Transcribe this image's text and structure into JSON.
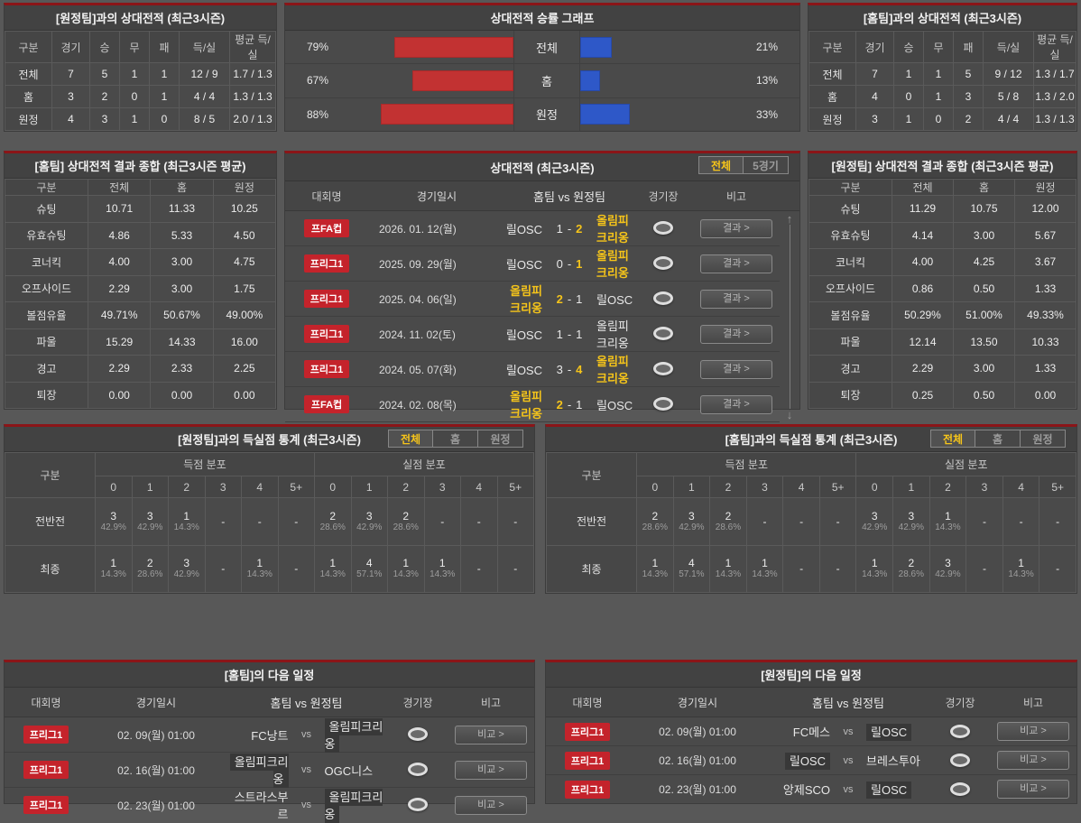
{
  "labels": {
    "vs": "vs",
    "dash": "-"
  },
  "colors": {
    "panel_top_border": "#8b1518",
    "badge_red": "#c4232b",
    "bar_red": "#c23232",
    "bar_blue": "#2e58c8",
    "highlight_yellow": "#f5c41a",
    "panel_bg": "#4a4a4a",
    "page_bg": "#585858"
  },
  "chart_data": {
    "type": "bar",
    "title": "상대전적 승률 그래프",
    "categories": [
      "전체",
      "홈",
      "원정"
    ],
    "series": [
      {
        "name": "left-red",
        "color": "#c23232",
        "values": [
          79,
          67,
          88
        ]
      },
      {
        "name": "right-blue",
        "color": "#2e58c8",
        "values": [
          21,
          13,
          33
        ]
      }
    ],
    "unit": "%",
    "xlim": [
      0,
      100
    ],
    "legend": "none"
  },
  "chart": {
    "title": "상대전적 승률 그래프",
    "rows": [
      {
        "label": "전체",
        "left_label": "79%",
        "right_label": "21%"
      },
      {
        "label": "홈",
        "left_label": "67%",
        "right_label": "13%"
      },
      {
        "label": "원정",
        "left_label": "88%",
        "right_label": "33%"
      }
    ]
  },
  "a1": {
    "title": "[원정팀]과의 상대전적 (최근3시즌)",
    "headers": [
      "구분",
      "경기",
      "승",
      "무",
      "패",
      "득/실",
      "평균 득/실"
    ],
    "rows": [
      {
        "label": "전체",
        "cells": [
          "7",
          "5",
          "1",
          "1",
          "12 / 9",
          "1.7 / 1.3"
        ]
      },
      {
        "label": "홈",
        "cells": [
          "3",
          "2",
          "0",
          "1",
          "4 / 4",
          "1.3 / 1.3"
        ]
      },
      {
        "label": "원정",
        "cells": [
          "4",
          "3",
          "1",
          "0",
          "8 / 5",
          "2.0 / 1.3"
        ]
      }
    ]
  },
  "a2": {
    "title": "[홈팀]과의 상대전적 (최근3시즌)",
    "headers": [
      "구분",
      "경기",
      "승",
      "무",
      "패",
      "득/실",
      "평균 득/실"
    ],
    "rows": [
      {
        "label": "전체",
        "cells": [
          "7",
          "1",
          "1",
          "5",
          "9 / 12",
          "1.3 / 1.7"
        ]
      },
      {
        "label": "홈",
        "cells": [
          "4",
          "0",
          "1",
          "3",
          "5 / 8",
          "1.3 / 2.0"
        ]
      },
      {
        "label": "원정",
        "cells": [
          "3",
          "1",
          "0",
          "2",
          "4 / 4",
          "1.3 / 1.3"
        ]
      }
    ]
  },
  "s1": {
    "title": "[홈팀] 상대전적 결과 종합 (최근3시즌 평균)",
    "headers": [
      "구분",
      "전체",
      "홈",
      "원정"
    ],
    "rows": [
      {
        "label": "슈팅",
        "cells": [
          "10.71",
          "11.33",
          "10.25"
        ]
      },
      {
        "label": "유효슈팅",
        "cells": [
          "4.86",
          "5.33",
          "4.50"
        ]
      },
      {
        "label": "코너킥",
        "cells": [
          "4.00",
          "3.00",
          "4.75"
        ]
      },
      {
        "label": "오프사이드",
        "cells": [
          "2.29",
          "3.00",
          "1.75"
        ]
      },
      {
        "label": "볼점유율",
        "cells": [
          "49.71%",
          "50.67%",
          "49.00%"
        ]
      },
      {
        "label": "파울",
        "cells": [
          "15.29",
          "14.33",
          "16.00"
        ]
      },
      {
        "label": "경고",
        "cells": [
          "2.29",
          "2.33",
          "2.25"
        ]
      },
      {
        "label": "퇴장",
        "cells": [
          "0.00",
          "0.00",
          "0.00"
        ]
      }
    ]
  },
  "s2": {
    "title": "[원정팀] 상대전적 결과 종합 (최근3시즌 평균)",
    "headers": [
      "구분",
      "전체",
      "홈",
      "원정"
    ],
    "rows": [
      {
        "label": "슈팅",
        "cells": [
          "11.29",
          "10.75",
          "12.00"
        ]
      },
      {
        "label": "유효슈팅",
        "cells": [
          "4.14",
          "3.00",
          "5.67"
        ]
      },
      {
        "label": "코너킥",
        "cells": [
          "4.00",
          "4.25",
          "3.67"
        ]
      },
      {
        "label": "오프사이드",
        "cells": [
          "0.86",
          "0.50",
          "1.33"
        ]
      },
      {
        "label": "볼점유율",
        "cells": [
          "50.29%",
          "51.00%",
          "49.33%"
        ]
      },
      {
        "label": "파울",
        "cells": [
          "12.14",
          "13.50",
          "10.33"
        ]
      },
      {
        "label": "경고",
        "cells": [
          "2.29",
          "3.00",
          "1.33"
        ]
      },
      {
        "label": "퇴장",
        "cells": [
          "0.25",
          "0.50",
          "0.00"
        ]
      }
    ]
  },
  "matches": {
    "title": "상대전적 (최근3시즌)",
    "tabs": [
      {
        "label": "전체"
      },
      {
        "label": "5경기"
      }
    ],
    "headers": [
      "대회명",
      "경기일시",
      "홈팀 vs 원정팀",
      "경기장",
      "비고"
    ],
    "button_label": "결과 >",
    "rows": [
      {
        "league": "프FA컵",
        "date": "2026. 01. 12(월)",
        "home": "릴OSC",
        "home_score": "1",
        "away_score": "2",
        "away": "올림피크리옹",
        "winner": "away"
      },
      {
        "league": "프리그1",
        "date": "2025. 09. 29(월)",
        "home": "릴OSC",
        "home_score": "0",
        "away_score": "1",
        "away": "올림피크리옹",
        "winner": "away"
      },
      {
        "league": "프리그1",
        "date": "2025. 04. 06(일)",
        "home": "올림피크리옹",
        "home_score": "2",
        "away_score": "1",
        "away": "릴OSC",
        "winner": "home"
      },
      {
        "league": "프리그1",
        "date": "2024. 11. 02(토)",
        "home": "릴OSC",
        "home_score": "1",
        "away_score": "1",
        "away": "올림피크리옹",
        "winner": "draw"
      },
      {
        "league": "프리그1",
        "date": "2024. 05. 07(화)",
        "home": "릴OSC",
        "home_score": "3",
        "away_score": "4",
        "away": "올림피크리옹",
        "winner": "away"
      },
      {
        "league": "프FA컵",
        "date": "2024. 02. 08(목)",
        "home": "올림피크리옹",
        "home_score": "2",
        "away_score": "1",
        "away": "릴OSC",
        "winner": "home"
      }
    ]
  },
  "g1": {
    "title": "[원정팀]과의 득실점 통계 (최근3시즌)",
    "tabs": [
      {
        "label": "전체"
      },
      {
        "label": "홈"
      },
      {
        "label": "원정"
      }
    ],
    "col_label": "구분",
    "scored_label": "득점 분포",
    "conceded_label": "실점 분포",
    "bins": [
      "0",
      "1",
      "2",
      "3",
      "4",
      "5+"
    ],
    "rows": [
      {
        "label": "전반전",
        "scored": [
          {
            "n": "3",
            "p": "42.9%"
          },
          {
            "n": "3",
            "p": "42.9%"
          },
          {
            "n": "1",
            "p": "14.3%"
          },
          {
            "n": "-",
            "p": ""
          },
          {
            "n": "-",
            "p": ""
          },
          {
            "n": "-",
            "p": ""
          }
        ],
        "conceded": [
          {
            "n": "2",
            "p": "28.6%"
          },
          {
            "n": "3",
            "p": "42.9%"
          },
          {
            "n": "2",
            "p": "28.6%"
          },
          {
            "n": "-",
            "p": ""
          },
          {
            "n": "-",
            "p": ""
          },
          {
            "n": "-",
            "p": ""
          }
        ]
      },
      {
        "label": "최종",
        "scored": [
          {
            "n": "1",
            "p": "14.3%"
          },
          {
            "n": "2",
            "p": "28.6%"
          },
          {
            "n": "3",
            "p": "42.9%"
          },
          {
            "n": "-",
            "p": ""
          },
          {
            "n": "1",
            "p": "14.3%"
          },
          {
            "n": "-",
            "p": ""
          }
        ],
        "conceded": [
          {
            "n": "1",
            "p": "14.3%"
          },
          {
            "n": "4",
            "p": "57.1%"
          },
          {
            "n": "1",
            "p": "14.3%"
          },
          {
            "n": "1",
            "p": "14.3%"
          },
          {
            "n": "-",
            "p": ""
          },
          {
            "n": "-",
            "p": ""
          }
        ]
      }
    ]
  },
  "g2": {
    "title": "[홈팀]과의 득실점 통계 (최근3시즌)",
    "tabs": [
      {
        "label": "전체"
      },
      {
        "label": "홈"
      },
      {
        "label": "원정"
      }
    ],
    "col_label": "구분",
    "scored_label": "득점 분포",
    "conceded_label": "실점 분포",
    "bins": [
      "0",
      "1",
      "2",
      "3",
      "4",
      "5+"
    ],
    "rows": [
      {
        "label": "전반전",
        "scored": [
          {
            "n": "2",
            "p": "28.6%"
          },
          {
            "n": "3",
            "p": "42.9%"
          },
          {
            "n": "2",
            "p": "28.6%"
          },
          {
            "n": "-",
            "p": ""
          },
          {
            "n": "-",
            "p": ""
          },
          {
            "n": "-",
            "p": ""
          }
        ],
        "conceded": [
          {
            "n": "3",
            "p": "42.9%"
          },
          {
            "n": "3",
            "p": "42.9%"
          },
          {
            "n": "1",
            "p": "14.3%"
          },
          {
            "n": "-",
            "p": ""
          },
          {
            "n": "-",
            "p": ""
          },
          {
            "n": "-",
            "p": ""
          }
        ]
      },
      {
        "label": "최종",
        "scored": [
          {
            "n": "1",
            "p": "14.3%"
          },
          {
            "n": "4",
            "p": "57.1%"
          },
          {
            "n": "1",
            "p": "14.3%"
          },
          {
            "n": "1",
            "p": "14.3%"
          },
          {
            "n": "-",
            "p": ""
          },
          {
            "n": "-",
            "p": ""
          }
        ],
        "conceded": [
          {
            "n": "1",
            "p": "14.3%"
          },
          {
            "n": "2",
            "p": "28.6%"
          },
          {
            "n": "3",
            "p": "42.9%"
          },
          {
            "n": "-",
            "p": ""
          },
          {
            "n": "1",
            "p": "14.3%"
          },
          {
            "n": "-",
            "p": ""
          }
        ]
      }
    ]
  },
  "n1": {
    "title": "[홈팀]의 다음 일정",
    "headers": [
      "대회명",
      "경기일시",
      "홈팀 vs 원정팀",
      "경기장",
      "비고"
    ],
    "button_label": "비교 >",
    "rows": [
      {
        "league": "프리그1",
        "datetime": "02. 09(월) 01:00",
        "home": "FC낭트",
        "away": "올림피크리옹",
        "highlight": "away"
      },
      {
        "league": "프리그1",
        "datetime": "02. 16(월) 01:00",
        "home": "올림피크리옹",
        "away": "OGC니스",
        "highlight": "home"
      },
      {
        "league": "프리그1",
        "datetime": "02. 23(월) 01:00",
        "home": "스트라스부르",
        "away": "올림피크리옹",
        "highlight": "away"
      }
    ]
  },
  "n2": {
    "title": "[원정팀]의 다음 일정",
    "headers": [
      "대회명",
      "경기일시",
      "홈팀 vs 원정팀",
      "경기장",
      "비고"
    ],
    "button_label": "비교 >",
    "rows": [
      {
        "league": "프리그1",
        "datetime": "02. 09(월) 01:00",
        "home": "FC메스",
        "away": "릴OSC",
        "highlight": "away"
      },
      {
        "league": "프리그1",
        "datetime": "02. 16(월) 01:00",
        "home": "릴OSC",
        "away": "브레스투아",
        "highlight": "home"
      },
      {
        "league": "프리그1",
        "datetime": "02. 23(월) 01:00",
        "home": "앙제SCO",
        "away": "릴OSC",
        "highlight": "away"
      }
    ]
  }
}
